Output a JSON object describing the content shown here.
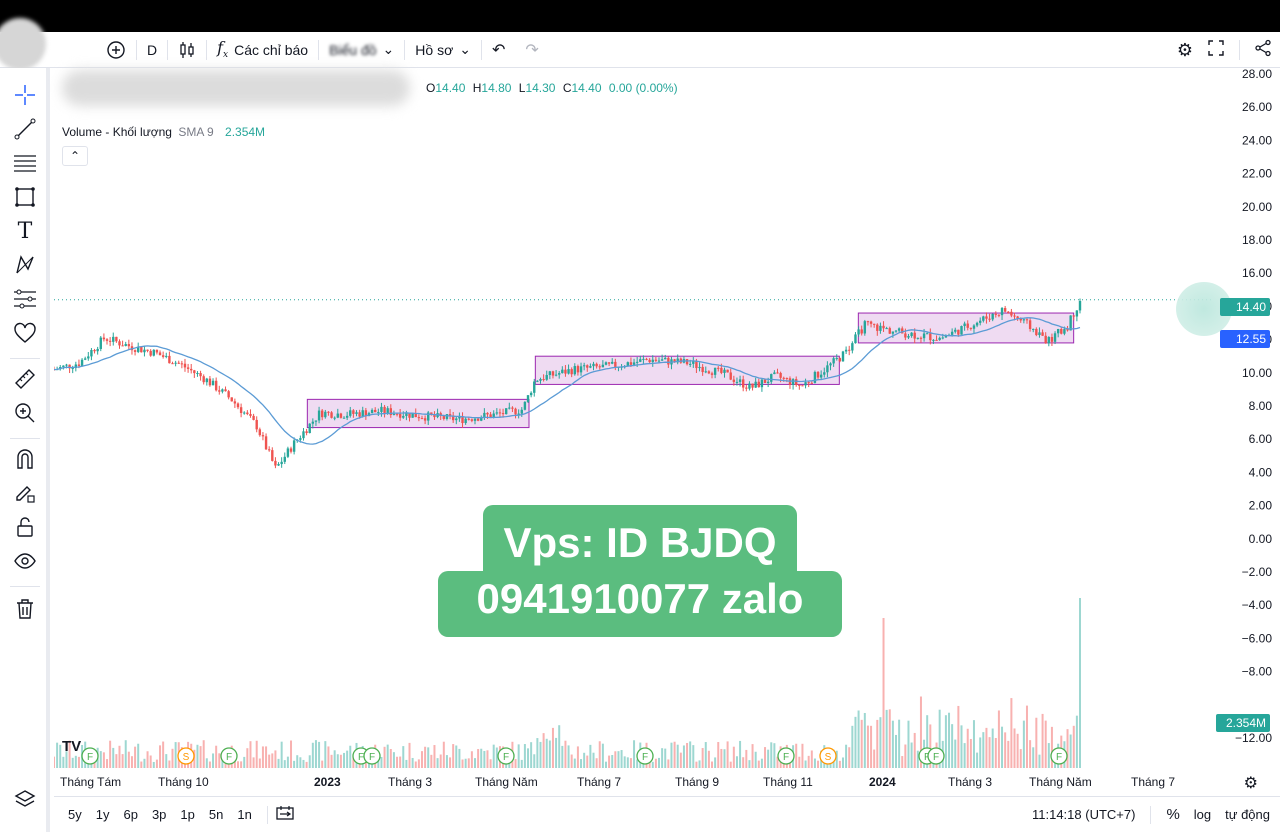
{
  "toolbar": {
    "interval": "D",
    "indicators_label": "Các chỉ báo",
    "templates_label": "Biểu đồ",
    "profile_label": "Hồ sơ"
  },
  "legend": {
    "ohlc": {
      "o": "14.40",
      "h": "14.80",
      "l": "14.30",
      "c": "14.40",
      "change": "0.00 (0.00%)"
    },
    "o_label": "O",
    "h_label": "H",
    "l_label": "L",
    "c_label": "C",
    "volume_title": "Volume - Khối lượng",
    "volume_sma": "SMA 9",
    "volume_value": "2.354M"
  },
  "price_axis": {
    "ticks": [
      "28.00",
      "26.00",
      "24.00",
      "22.00",
      "20.00",
      "18.00",
      "16.00",
      "14.00",
      "12.00",
      "10.00",
      "8.00",
      "6.00",
      "4.00",
      "2.00",
      "0.00",
      "−2.00",
      "−4.00",
      "−6.00",
      "−8.00",
      "−12.00"
    ],
    "current_price_label": "14.40",
    "sma_label": "12.55",
    "volume_label": "2.354M"
  },
  "time_axis": {
    "labels": [
      "Tháng Tám",
      "Tháng 10",
      "2023",
      "Tháng 3",
      "Tháng Năm",
      "Tháng 7",
      "Tháng 9",
      "Tháng 11",
      "2024",
      "Tháng 3",
      "Tháng Năm",
      "Tháng 7"
    ]
  },
  "bottom": {
    "ranges": [
      "5y",
      "1y",
      "6p",
      "3p",
      "1p",
      "5n",
      "1n"
    ],
    "time": "11:14:18 (UTC+7)",
    "percent": "%",
    "log": "log",
    "auto": "tự động"
  },
  "events": [
    "F",
    "S",
    "F",
    "F",
    "F",
    "F",
    "F",
    "F",
    "S",
    "F",
    "F",
    "F"
  ],
  "watermark": {
    "line1": "Vps: ID BJDQ",
    "line2": "0941910077 zalo",
    "color": "#5bbd7f"
  },
  "colors": {
    "up": "#26a69a",
    "down": "#ef5350",
    "sma": "#2962ff",
    "box_fill": "#e1bee7",
    "box_stroke": "#9c27b0"
  },
  "chart_data": {
    "type": "candlestick",
    "title": "",
    "price_range": [
      -12,
      28
    ],
    "price_series": [
      {
        "t": 0,
        "p": 10.2
      },
      {
        "t": 4,
        "p": 10.6
      },
      {
        "t": 8,
        "p": 12.1
      },
      {
        "t": 12,
        "p": 11.6
      },
      {
        "t": 16,
        "p": 11.2
      },
      {
        "t": 20,
        "p": 10.5
      },
      {
        "t": 24,
        "p": 9.6
      },
      {
        "t": 28,
        "p": 8.4
      },
      {
        "t": 32,
        "p": 6.8
      },
      {
        "t": 35,
        "p": 4.2
      },
      {
        "t": 38,
        "p": 5.8
      },
      {
        "t": 42,
        "p": 7.6
      },
      {
        "t": 46,
        "p": 7.5
      },
      {
        "t": 52,
        "p": 7.7
      },
      {
        "t": 58,
        "p": 7.4
      },
      {
        "t": 64,
        "p": 7.2
      },
      {
        "t": 70,
        "p": 7.5
      },
      {
        "t": 74,
        "p": 7.8
      },
      {
        "t": 76,
        "p": 9.6
      },
      {
        "t": 82,
        "p": 10.2
      },
      {
        "t": 88,
        "p": 10.4
      },
      {
        "t": 94,
        "p": 10.8
      },
      {
        "t": 100,
        "p": 10.6
      },
      {
        "t": 106,
        "p": 9.9
      },
      {
        "t": 110,
        "p": 9.1
      },
      {
        "t": 114,
        "p": 9.8
      },
      {
        "t": 118,
        "p": 9.2
      },
      {
        "t": 122,
        "p": 10.3
      },
      {
        "t": 125,
        "p": 11.2
      },
      {
        "t": 128,
        "p": 12.9
      },
      {
        "t": 134,
        "p": 12.4
      },
      {
        "t": 140,
        "p": 12.1
      },
      {
        "t": 146,
        "p": 13.1
      },
      {
        "t": 150,
        "p": 13.8
      },
      {
        "t": 154,
        "p": 12.8
      },
      {
        "t": 157,
        "p": 11.9
      },
      {
        "t": 160,
        "p": 12.8
      },
      {
        "t": 162,
        "p": 14.4
      }
    ],
    "consolidation_boxes": [
      {
        "t_start": 40,
        "t_end": 75,
        "p_low": 6.7,
        "p_high": 8.4
      },
      {
        "t_start": 76,
        "t_end": 124,
        "p_low": 9.3,
        "p_high": 11.0
      },
      {
        "t_start": 127,
        "t_end": 161,
        "p_low": 11.8,
        "p_high": 13.6
      }
    ],
    "last_close": 14.4,
    "sma_last": 12.55
  }
}
